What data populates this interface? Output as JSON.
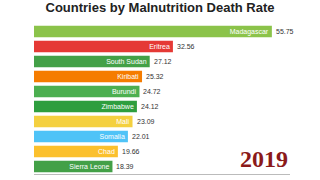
{
  "chart_data": {
    "type": "bar",
    "orientation": "horizontal",
    "title": "Countries by Malnutrition Death Rate",
    "categories": [
      "Madagascar",
      "Eritrea",
      "South Sudan",
      "Kiribati",
      "Burundi",
      "Zimbabwe",
      "Mali",
      "Somalia",
      "Chad",
      "Sierra Leone"
    ],
    "values": [
      55.75,
      32.56,
      27.12,
      25.32,
      24.72,
      24.12,
      23.09,
      22.01,
      19.66,
      18.39
    ],
    "colors": [
      "#8bc34a",
      "#e53935",
      "#43a047",
      "#f57c00",
      "#4caf50",
      "#2e9e3e",
      "#f4d03f",
      "#4fc3f7",
      "#fbc02d",
      "#43a047"
    ],
    "xlim": [
      0,
      60
    ],
    "xticks": [],
    "data_labels": true,
    "tick_labels": false,
    "grid": false,
    "annotations": [
      "2019"
    ]
  }
}
